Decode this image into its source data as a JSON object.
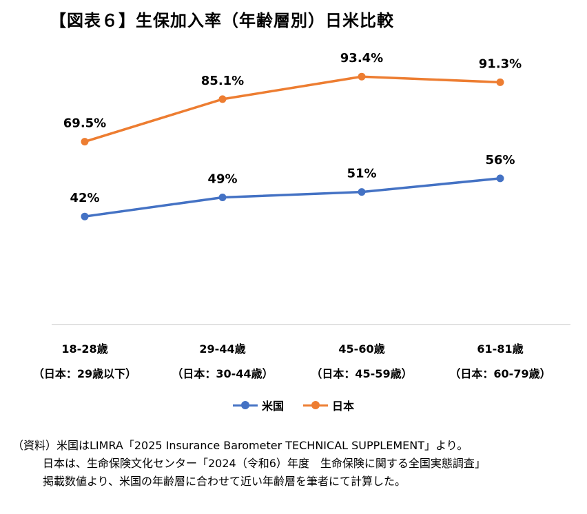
{
  "title": "【図表６】生保加入率（年齢層別）日米比較",
  "chart_data": {
    "type": "line",
    "categories": [
      {
        "line1": "18-28歳",
        "line2": "（日本：29歳以下）"
      },
      {
        "line1": "29-44歳",
        "line2": "（日本：30-44歳）"
      },
      {
        "line1": "45-60歳",
        "line2": "（日本：45-59歳）"
      },
      {
        "line1": "61-81歳",
        "line2": "（日本：60-79歳）"
      }
    ],
    "series": [
      {
        "name": "米国",
        "color": "#4472C4",
        "values": [
          42,
          49,
          51,
          56
        ],
        "labels": [
          "42%",
          "49%",
          "51%",
          "56%"
        ]
      },
      {
        "name": "日本",
        "color": "#ED7D31",
        "values": [
          69.5,
          85.1,
          93.4,
          91.3
        ],
        "labels": [
          "69.5%",
          "85.1%",
          "93.4%",
          "91.3%"
        ]
      }
    ],
    "ylim": [
      0,
      100
    ],
    "grid": false,
    "legend_position": "bottom"
  },
  "footnote": {
    "line1": "（資料）米国はLIMRA「2025 Insurance Barometer TECHNICAL SUPPLEMENT」より。",
    "line2": "日本は、生命保険文化センター「2024（令和6）年度　生命保険に関する全国実態調査」",
    "line3": "掲載数値より、米国の年齢層に合わせて近い年齢層を筆者にて計算した。"
  }
}
